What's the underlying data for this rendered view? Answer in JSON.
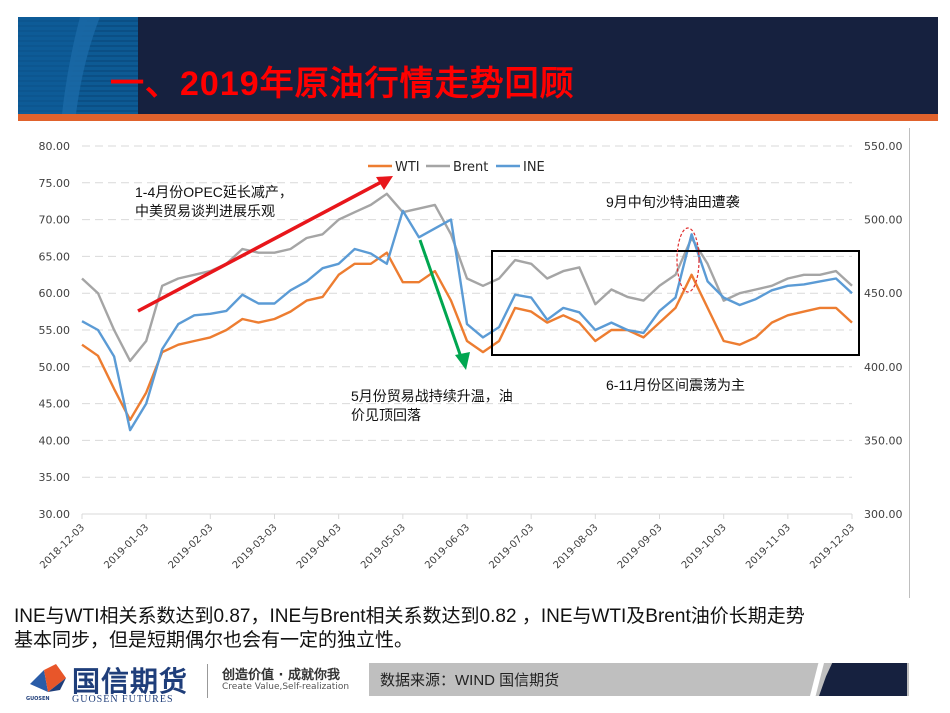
{
  "header": {
    "title": "一、2019年原油行情走势回顾",
    "title_color": "#ff0000",
    "band_color": "#16213f",
    "accent_bar_color": "#e0622c"
  },
  "chart_data": {
    "type": "line",
    "title": "",
    "legend": [
      "WTI",
      "Brent",
      "INE"
    ],
    "legend_position": "top",
    "colors": {
      "WTI": "#ed7d31",
      "Brent": "#a5a5a5",
      "INE": "#5b9bd5"
    },
    "xlabel": "",
    "ylabel": "",
    "x_ticks": [
      "2018-12-03",
      "2019-01-03",
      "2019-02-03",
      "2019-03-03",
      "2019-04-03",
      "2019-05-03",
      "2019-06-03",
      "2019-07-03",
      "2019-08-03",
      "2019-09-03",
      "2019-10-03",
      "2019-11-03",
      "2019-12-03"
    ],
    "y_left": {
      "range": [
        30,
        80
      ],
      "ticks": [
        "30.00",
        "35.00",
        "40.00",
        "45.00",
        "50.00",
        "55.00",
        "60.00",
        "65.00",
        "70.00",
        "75.00",
        "80.00"
      ],
      "series": [
        "WTI",
        "Brent"
      ]
    },
    "y_right": {
      "range": [
        300,
        550
      ],
      "ticks": [
        "300.00",
        "350.00",
        "400.00",
        "450.00",
        "500.00",
        "550.00"
      ],
      "series": [
        "INE"
      ]
    },
    "grid": "horizontal dashed",
    "x": [
      "2018-12-03",
      "2018-12-10",
      "2018-12-17",
      "2018-12-24",
      "2019-01-03",
      "2019-01-10",
      "2019-01-17",
      "2019-01-24",
      "2019-02-03",
      "2019-02-10",
      "2019-02-17",
      "2019-02-24",
      "2019-03-03",
      "2019-03-10",
      "2019-03-17",
      "2019-03-24",
      "2019-04-03",
      "2019-04-10",
      "2019-04-17",
      "2019-04-24",
      "2019-05-03",
      "2019-05-10",
      "2019-05-17",
      "2019-05-24",
      "2019-06-03",
      "2019-06-10",
      "2019-06-17",
      "2019-06-24",
      "2019-07-03",
      "2019-07-10",
      "2019-07-17",
      "2019-07-24",
      "2019-08-03",
      "2019-08-10",
      "2019-08-17",
      "2019-08-24",
      "2019-09-03",
      "2019-09-10",
      "2019-09-17",
      "2019-09-24",
      "2019-10-03",
      "2019-10-10",
      "2019-10-17",
      "2019-10-24",
      "2019-11-03",
      "2019-11-10",
      "2019-11-17",
      "2019-11-24",
      "2019-12-03"
    ],
    "series": [
      {
        "name": "WTI",
        "axis": "left",
        "values": [
          53.0,
          51.5,
          47.0,
          42.8,
          46.5,
          52.0,
          53.0,
          53.5,
          54.0,
          55.0,
          56.5,
          56.0,
          56.5,
          57.5,
          59.0,
          59.5,
          62.5,
          64.0,
          64.0,
          65.5,
          61.5,
          61.5,
          63.0,
          59.0,
          53.5,
          52.0,
          53.5,
          58.0,
          57.5,
          56.0,
          57.0,
          56.0,
          53.5,
          55.0,
          55.0,
          54.0,
          56.0,
          58.0,
          62.5,
          58.0,
          53.5,
          53.0,
          54.0,
          56.0,
          57.0,
          57.5,
          58.0,
          58.0,
          56.0
        ]
      },
      {
        "name": "Brent",
        "axis": "left",
        "values": [
          62.0,
          60.0,
          55.0,
          50.8,
          53.5,
          61.0,
          62.0,
          62.5,
          63.0,
          64.0,
          66.0,
          65.5,
          65.5,
          66.0,
          67.5,
          68.0,
          70.0,
          71.0,
          72.0,
          73.5,
          71.0,
          71.5,
          72.0,
          68.0,
          62.0,
          61.0,
          62.0,
          64.5,
          64.0,
          62.0,
          63.0,
          63.5,
          58.5,
          60.5,
          59.5,
          59.0,
          61.0,
          62.5,
          67.5,
          64.0,
          59.0,
          60.0,
          60.5,
          61.0,
          62.0,
          62.5,
          62.5,
          63.0,
          61.0
        ]
      },
      {
        "name": "INE",
        "axis": "right",
        "values": [
          431,
          425,
          407,
          357,
          375,
          412,
          429,
          435,
          436,
          438,
          449,
          443,
          443,
          452,
          458,
          467,
          470,
          480,
          477,
          470,
          506,
          488,
          494,
          500,
          429,
          420,
          427,
          449,
          447,
          432,
          440,
          437,
          425,
          430,
          425,
          423,
          438,
          447,
          490,
          458,
          447,
          442,
          446,
          452,
          455,
          456,
          458,
          460,
          450
        ]
      }
    ],
    "annotations": [
      {
        "text": "1-4月份OPEC延长减产，\n中美贸易谈判进展乐观",
        "arrow": "red, rising from 2019-01 to 2019-05"
      },
      {
        "text": "5月份贸易战持续升温，油\n价见顶回落",
        "arrow": "green, falling mid-May to early June"
      },
      {
        "text": "9月中旬沙特油田遭袭",
        "marker": "red dashed ellipse around mid-September spike"
      },
      {
        "text": "6-11月份区间震荡为主",
        "marker": "black box from mid-June to early December, 51.5–65"
      }
    ]
  },
  "labels": {
    "legend_wti": "WTI",
    "legend_brent": "Brent",
    "legend_ine": "INE",
    "ann1_line1": "1-4月份OPEC延长减产，",
    "ann1_line2": "中美贸易谈判进展乐观",
    "ann2_line1": "5月份贸易战持续升温，油",
    "ann2_line2": "价见顶回落",
    "ann3": "9月中旬沙特油田遭袭",
    "ann4": "6-11月份区间震荡为主"
  },
  "caption": {
    "line1": "INE与WTI相关系数达到0.87，INE与Brent相关系数达到0.82 ，INE与WTI及Brent油价长期走势",
    "line2": "基本同步，但是短期偶尔也会有一定的独立性。"
  },
  "footer": {
    "logo_cn": "国信期货",
    "logo_en": "GUOSEN FUTURES",
    "logo_tiny": "GUOSEN",
    "slogan_cn": "创造价值 · 成就你我",
    "slogan_en": "Create Value,Self-realization",
    "source": "数据来源：WIND   国信期货"
  }
}
